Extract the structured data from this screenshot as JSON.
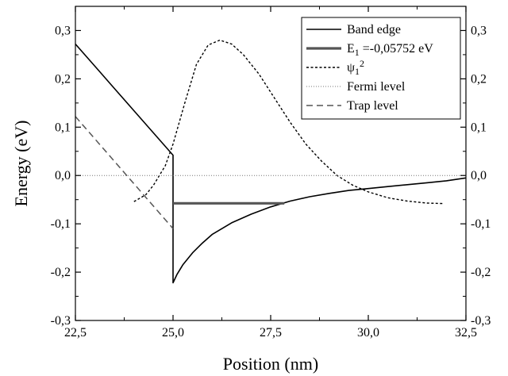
{
  "chart_data": {
    "type": "line",
    "xlabel": "Position (nm)",
    "ylabel": "Energy (eV)",
    "xlim": [
      22.5,
      32.5
    ],
    "ylim": [
      -0.3,
      0.35
    ],
    "xticks": [
      22.5,
      25.0,
      27.5,
      30.0,
      32.5
    ],
    "xtick_labels": [
      "22,5",
      "25,0",
      "27,5",
      "30,0",
      "32,5"
    ],
    "yticks": [
      -0.3,
      -0.2,
      -0.1,
      0.0,
      0.1,
      0.2,
      0.3
    ],
    "ytick_labels": [
      "-0,3",
      "-0,2",
      "-0,1",
      "0,0",
      "0,1",
      "0,2",
      "0,3"
    ],
    "right_axis_ticks_mirrored": true,
    "grid": false,
    "legend_position": "top-right",
    "series": [
      {
        "name": "Band edge",
        "style": "solid",
        "color": "#000000",
        "x": [
          22.5,
          23.0,
          23.5,
          24.0,
          24.5,
          25.0,
          25.0,
          25.1,
          25.25,
          25.5,
          25.75,
          26.0,
          26.5,
          27.0,
          27.5,
          28.0,
          28.5,
          29.0,
          29.5,
          30.0,
          30.5,
          31.0,
          31.5,
          32.0,
          32.5
        ],
        "y": [
          0.272,
          0.226,
          0.18,
          0.134,
          0.088,
          0.042,
          -0.222,
          -0.205,
          -0.185,
          -0.16,
          -0.14,
          -0.122,
          -0.098,
          -0.08,
          -0.065,
          -0.053,
          -0.044,
          -0.037,
          -0.031,
          -0.027,
          -0.023,
          -0.019,
          -0.015,
          -0.011,
          -0.005
        ]
      },
      {
        "name": "E1 =-0,05752 eV",
        "label_html": {
          "base": "E",
          "sub": "1",
          "rest": " =-0,05752 eV"
        },
        "style": "thick",
        "color": "#555555",
        "x": [
          25.0,
          27.85
        ],
        "y": [
          -0.05752,
          -0.05752
        ]
      },
      {
        "name": "ψ1²",
        "label_html": {
          "base": "ψ",
          "sub": "1",
          "sup": "2"
        },
        "style": "dotted",
        "color": "#000000",
        "x": [
          24.0,
          24.3,
          24.5,
          24.8,
          25.0,
          25.3,
          25.6,
          25.9,
          26.2,
          26.5,
          26.8,
          27.2,
          27.6,
          28.0,
          28.4,
          28.8,
          29.2,
          29.6,
          30.0,
          30.5,
          31.0,
          31.5,
          31.9
        ],
        "y": [
          -0.054,
          -0.04,
          -0.02,
          0.02,
          0.065,
          0.15,
          0.23,
          0.27,
          0.28,
          0.272,
          0.25,
          0.21,
          0.16,
          0.11,
          0.065,
          0.03,
          0.0,
          -0.02,
          -0.034,
          -0.046,
          -0.053,
          -0.057,
          -0.058
        ]
      },
      {
        "name": "Fermi level",
        "style": "fine-dotted",
        "color": "#777777",
        "x": [
          22.5,
          32.5
        ],
        "y": [
          0.0,
          0.0
        ]
      },
      {
        "name": "Trap level",
        "style": "dashed",
        "color": "#555555",
        "x": [
          22.5,
          25.0
        ],
        "y": [
          0.122,
          -0.11
        ]
      }
    ]
  }
}
